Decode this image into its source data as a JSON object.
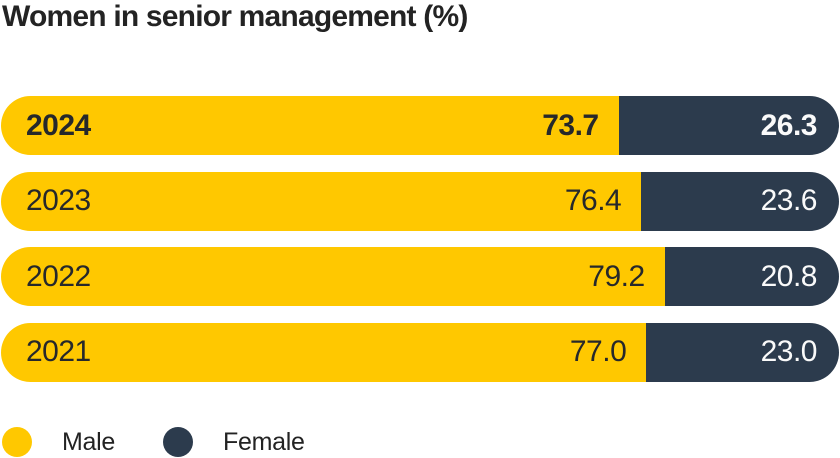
{
  "header": {
    "title": "Women in senior management (%)"
  },
  "colors": {
    "male": "#FFC800",
    "female": "#2C3B4D",
    "title_text": "#232323",
    "dark_text": "#26282B",
    "light_text": "#FAFAFA",
    "background": "#FFFFFF"
  },
  "legend": {
    "items": [
      {
        "label": "Male",
        "color": "#FFC800"
      },
      {
        "label": "Female",
        "color": "#2C3B4D"
      }
    ],
    "position": "bottom-left"
  },
  "chart_data": {
    "type": "bar",
    "orientation": "horizontal",
    "stacked": true,
    "title": "Women in senior management (%)",
    "categories": [
      "2024",
      "2023",
      "2022",
      "2021"
    ],
    "series": [
      {
        "name": "Male",
        "color": "#FFC800",
        "values": [
          73.7,
          76.4,
          79.2,
          77.0
        ]
      },
      {
        "name": "Female",
        "color": "#2C3B4D",
        "values": [
          26.3,
          23.6,
          20.8,
          23.0
        ]
      }
    ],
    "value_format": "one_decimal",
    "value_range": [
      0,
      100
    ],
    "highlight_category": "2024",
    "grid": false,
    "legend_position": "bottom"
  }
}
